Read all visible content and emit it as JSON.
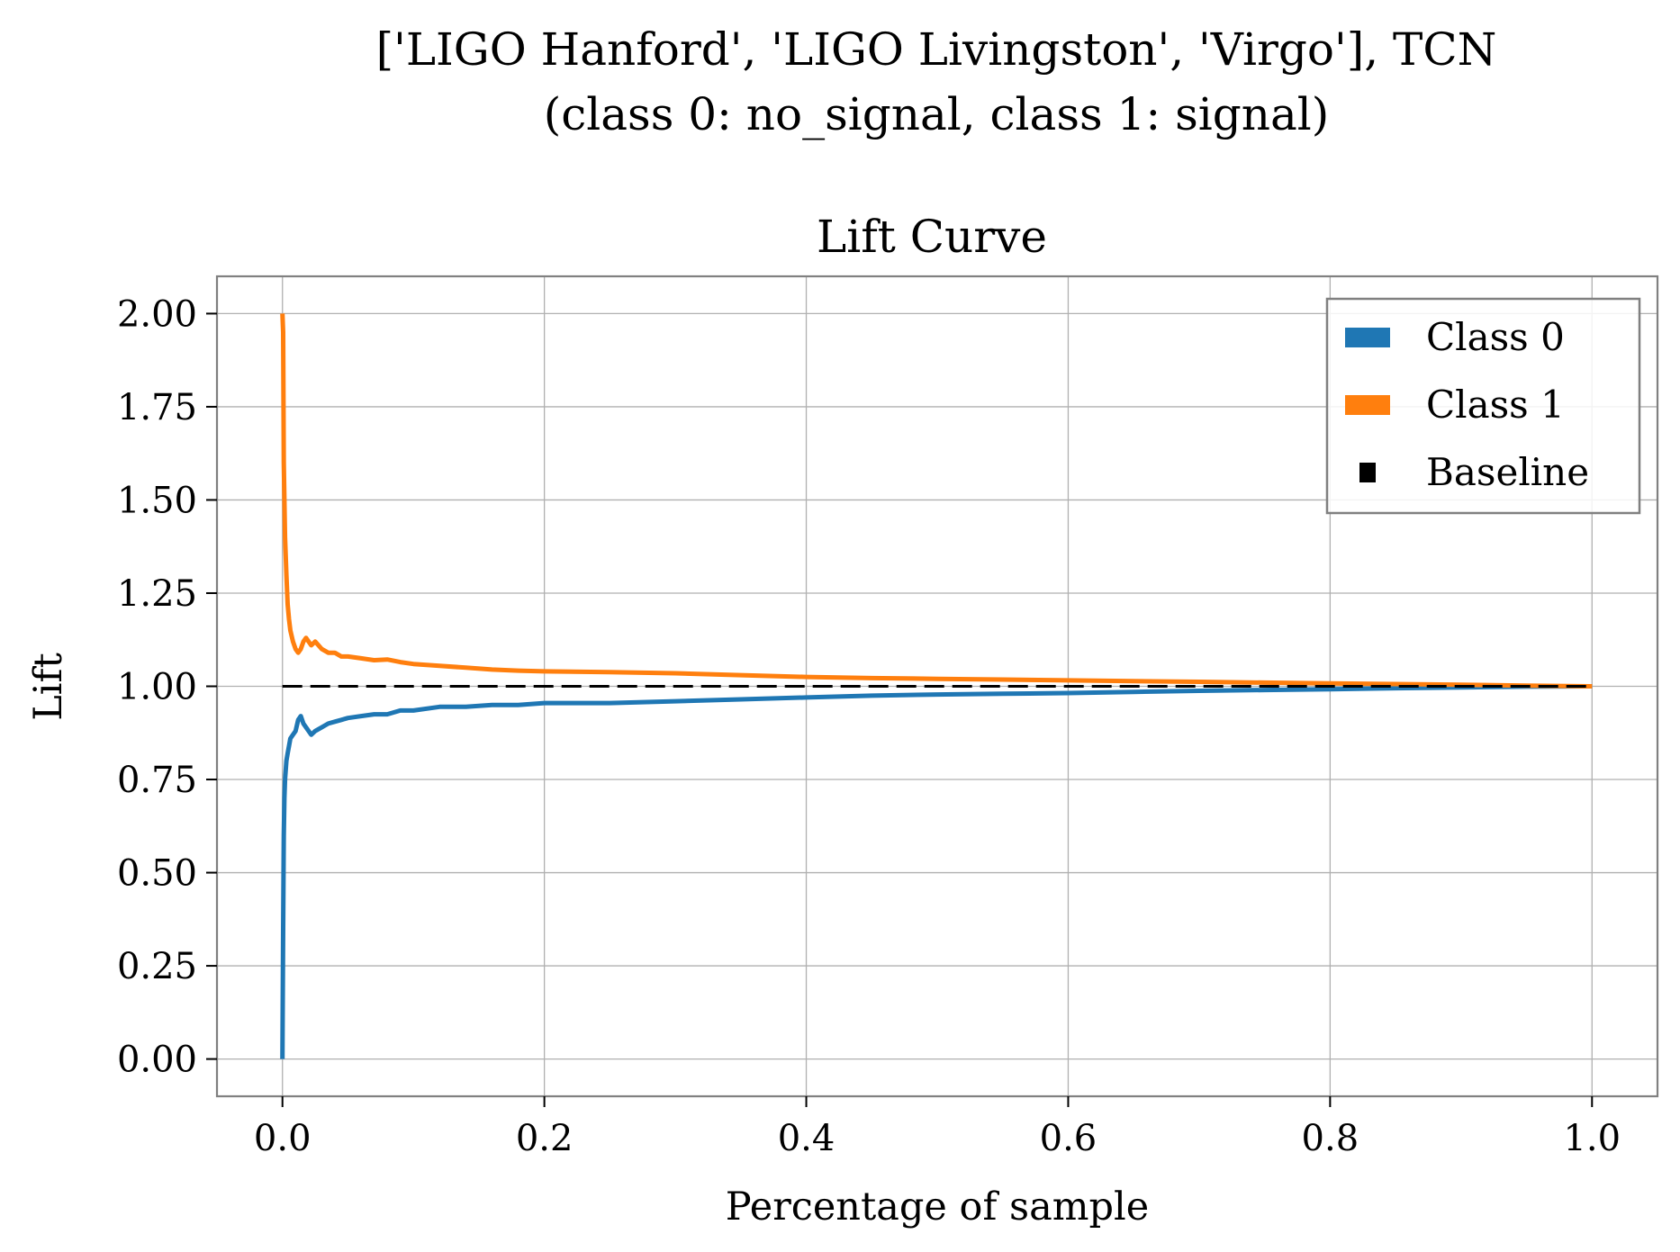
{
  "chart_data": {
    "type": "line",
    "suptitle": [
      "['LIGO Hanford', 'LIGO Livingston', 'Virgo'], TCN",
      "(class 0: no_signal, class 1: signal)"
    ],
    "title": "Lift Curve",
    "xlabel": "Percentage of sample",
    "ylabel": "Lift",
    "xlim": [
      -0.05,
      1.05
    ],
    "ylim": [
      -0.1,
      2.1
    ],
    "xticks": [
      "0.0",
      "0.2",
      "0.4",
      "0.6",
      "0.8",
      "1.0"
    ],
    "xtick_values": [
      0.0,
      0.2,
      0.4,
      0.6,
      0.8,
      1.0
    ],
    "yticks": [
      "0.00",
      "0.25",
      "0.50",
      "0.75",
      "1.00",
      "1.25",
      "1.50",
      "1.75",
      "2.00"
    ],
    "ytick_values": [
      0.0,
      0.25,
      0.5,
      0.75,
      1.0,
      1.25,
      1.5,
      1.75,
      2.0
    ],
    "grid": true,
    "legend_position": "top-right",
    "series": [
      {
        "name": "Class 0",
        "color": "#1f77b4",
        "x": [
          0.0,
          0.0005,
          0.001,
          0.0015,
          0.002,
          0.003,
          0.004,
          0.005,
          0.006,
          0.008,
          0.01,
          0.012,
          0.014,
          0.016,
          0.018,
          0.02,
          0.022,
          0.025,
          0.03,
          0.035,
          0.04,
          0.045,
          0.05,
          0.06,
          0.07,
          0.08,
          0.09,
          0.1,
          0.12,
          0.14,
          0.16,
          0.18,
          0.2,
          0.25,
          0.3,
          0.35,
          0.4,
          0.45,
          0.5,
          0.55,
          0.6,
          0.65,
          0.7,
          0.75,
          0.8,
          0.85,
          0.9,
          0.95,
          1.0
        ],
        "y": [
          0.0,
          0.35,
          0.6,
          0.7,
          0.75,
          0.8,
          0.82,
          0.84,
          0.86,
          0.87,
          0.88,
          0.91,
          0.92,
          0.9,
          0.89,
          0.88,
          0.87,
          0.88,
          0.89,
          0.9,
          0.905,
          0.91,
          0.915,
          0.92,
          0.925,
          0.925,
          0.935,
          0.935,
          0.945,
          0.945,
          0.95,
          0.95,
          0.955,
          0.955,
          0.96,
          0.965,
          0.97,
          0.975,
          0.978,
          0.98,
          0.982,
          0.985,
          0.988,
          0.99,
          0.992,
          0.995,
          0.997,
          0.999,
          1.0
        ]
      },
      {
        "name": "Class 1",
        "color": "#ff7f0e",
        "x": [
          0.0,
          0.0005,
          0.001,
          0.0015,
          0.002,
          0.003,
          0.004,
          0.005,
          0.006,
          0.008,
          0.01,
          0.012,
          0.014,
          0.016,
          0.018,
          0.02,
          0.022,
          0.025,
          0.03,
          0.035,
          0.04,
          0.045,
          0.05,
          0.06,
          0.07,
          0.08,
          0.09,
          0.1,
          0.12,
          0.14,
          0.16,
          0.18,
          0.2,
          0.25,
          0.3,
          0.35,
          0.4,
          0.45,
          0.5,
          0.55,
          0.6,
          0.65,
          0.7,
          0.75,
          0.8,
          0.85,
          0.9,
          0.95,
          1.0
        ],
        "y": [
          2.0,
          1.95,
          1.6,
          1.5,
          1.4,
          1.3,
          1.22,
          1.18,
          1.15,
          1.12,
          1.1,
          1.09,
          1.1,
          1.12,
          1.13,
          1.12,
          1.11,
          1.12,
          1.1,
          1.09,
          1.09,
          1.08,
          1.08,
          1.075,
          1.07,
          1.072,
          1.065,
          1.06,
          1.055,
          1.05,
          1.045,
          1.042,
          1.04,
          1.038,
          1.035,
          1.03,
          1.025,
          1.022,
          1.02,
          1.018,
          1.016,
          1.014,
          1.012,
          1.01,
          1.008,
          1.006,
          1.004,
          1.002,
          1.0
        ]
      },
      {
        "name": "Baseline",
        "color": "#000000",
        "style": "dashed",
        "x": [
          0.0,
          1.0
        ],
        "y": [
          1.0,
          1.0
        ]
      }
    ]
  }
}
